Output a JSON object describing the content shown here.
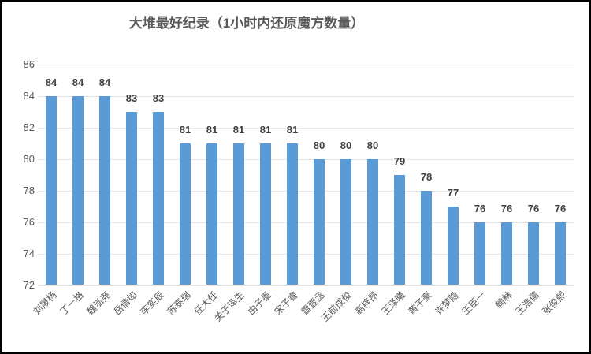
{
  "chart_data": {
    "type": "bar",
    "title": "大堆最好纪录（1小时内还原魔方数量）",
    "categories": [
      "刘晟杨",
      "丁一格",
      "魏泓尧",
      "岳倩如",
      "李奕辰",
      "苏泰瑞",
      "任大任",
      "关于泽生",
      "由子墨",
      "宋子睿",
      "雷壹丞",
      "王前成俊",
      "高梓昂",
      "王泽曦",
      "黄子豪",
      "许梦隐",
      "王臣一",
      "翰林",
      "王浩儒",
      "张俊熙"
    ],
    "values": [
      84,
      84,
      84,
      83,
      83,
      81,
      81,
      81,
      81,
      81,
      80,
      80,
      80,
      79,
      78,
      77,
      76,
      76,
      76,
      76
    ],
    "xlabel": "",
    "ylabel": "",
    "ylim": [
      72,
      86
    ],
    "yticks": [
      72,
      74,
      76,
      78,
      80,
      82,
      84,
      86
    ],
    "grid": true,
    "legend": false,
    "data_labels": true
  },
  "colors": {
    "bar": "#5B9BD5",
    "gridline": "#E7E7E7",
    "axis_line": "#BFBFBF",
    "tick_label": "#595959",
    "data_label": "#404040",
    "title": "#595959",
    "frame_border": "#000000",
    "background": "#FFFFFF"
  }
}
